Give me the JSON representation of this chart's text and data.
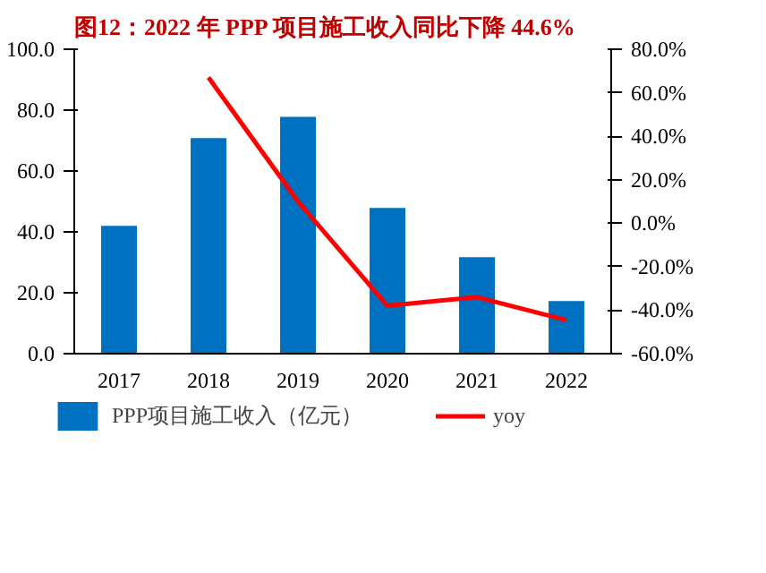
{
  "chart_data": {
    "type": "bar",
    "title": "图12：2022 年 PPP 项目施工收入同比下降 44.6%",
    "categories": [
      "2017",
      "2018",
      "2019",
      "2020",
      "2021",
      "2022"
    ],
    "series": [
      {
        "name": "PPP项目施工收入（亿元）",
        "color": "#0070c0",
        "values": [
          42.0,
          70.8,
          77.8,
          47.9,
          31.7,
          17.3
        ]
      },
      {
        "name": "yoy",
        "type": "line",
        "axis": "y2",
        "color": "#ff0000",
        "values": [
          null,
          67,
          10,
          -38,
          -34,
          -44.6
        ]
      }
    ],
    "ylim": [
      0,
      100
    ],
    "yticks": [
      {
        "value": 0,
        "label": "0.0"
      },
      {
        "value": 20,
        "label": "20.0"
      },
      {
        "value": 40,
        "label": "40.0"
      },
      {
        "value": 60,
        "label": "60.0"
      },
      {
        "value": 80,
        "label": "80.0"
      },
      {
        "value": 100,
        "label": "100.0"
      }
    ],
    "y2lim": [
      -60,
      80
    ],
    "y2ticks": [
      {
        "value": -60,
        "label": "-60.0%"
      },
      {
        "value": -40,
        "label": "-40.0%"
      },
      {
        "value": -20,
        "label": "-20.0%"
      },
      {
        "value": 0,
        "label": "0.0%"
      },
      {
        "value": 20,
        "label": "20.0%"
      },
      {
        "value": 40,
        "label": "40.0%"
      },
      {
        "value": 60,
        "label": "60.0%"
      },
      {
        "value": 80,
        "label": "80.0%"
      }
    ],
    "grid": false,
    "legend": "bottom",
    "marker": "none",
    "line_style": "solid"
  }
}
